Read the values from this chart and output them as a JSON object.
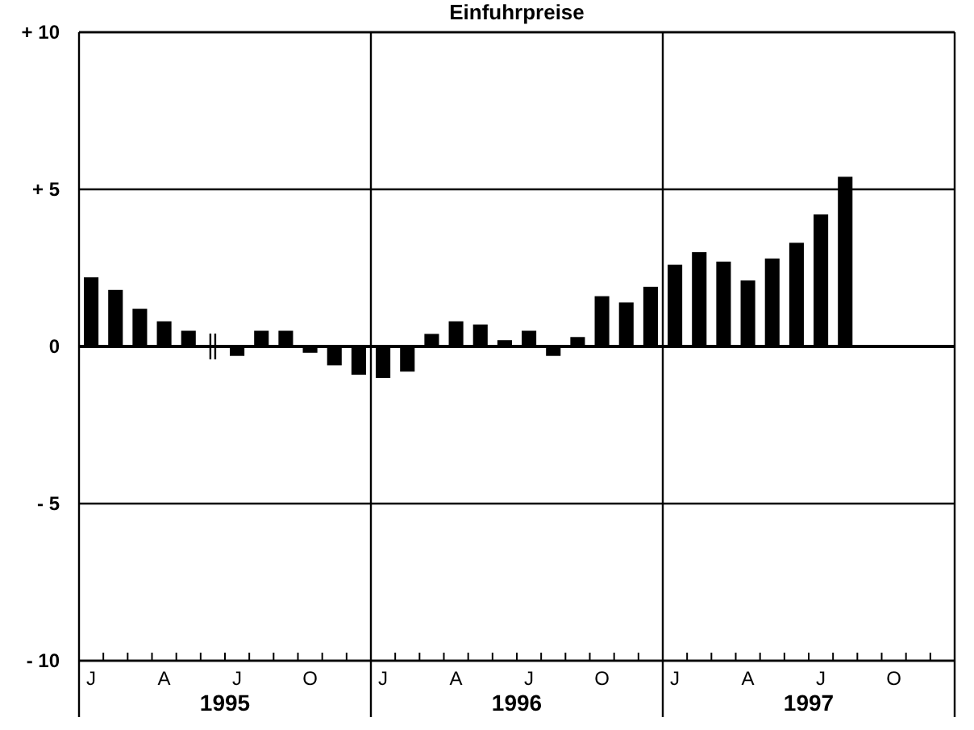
{
  "chart_data": {
    "type": "bar",
    "title": "Einfuhrpreise",
    "categories": [
      "J",
      null,
      null,
      "A",
      null,
      null,
      "J",
      null,
      null,
      "O",
      null,
      null,
      "J",
      null,
      null,
      "A",
      null,
      null,
      "J",
      null,
      null,
      "O",
      null,
      null,
      "J",
      null,
      null,
      "A",
      null,
      null,
      "J",
      null,
      null,
      "O",
      null,
      null
    ],
    "values": [
      2.2,
      1.8,
      1.2,
      0.8,
      0.5,
      null,
      -0.3,
      0.5,
      0.5,
      -0.2,
      -0.6,
      -0.9,
      -1.0,
      -0.8,
      0.4,
      0.8,
      0.7,
      0.2,
      0.5,
      -0.3,
      0.3,
      1.6,
      1.4,
      1.9,
      2.6,
      3.0,
      2.7,
      2.1,
      2.8,
      3.3,
      4.2,
      5.4,
      null,
      null,
      null,
      null
    ],
    "color": "#000000",
    "ylim": [
      -10,
      10
    ],
    "yticks": [
      {
        "value": 10,
        "label": "+ 10"
      },
      {
        "value": 5,
        "label": "+ 5"
      },
      0,
      {
        "value": -5,
        "label": "- 5"
      },
      {
        "value": -10,
        "label": "- 10"
      }
    ],
    "grid": "y",
    "annotations": [
      "1995",
      "1996",
      "1997"
    ]
  }
}
